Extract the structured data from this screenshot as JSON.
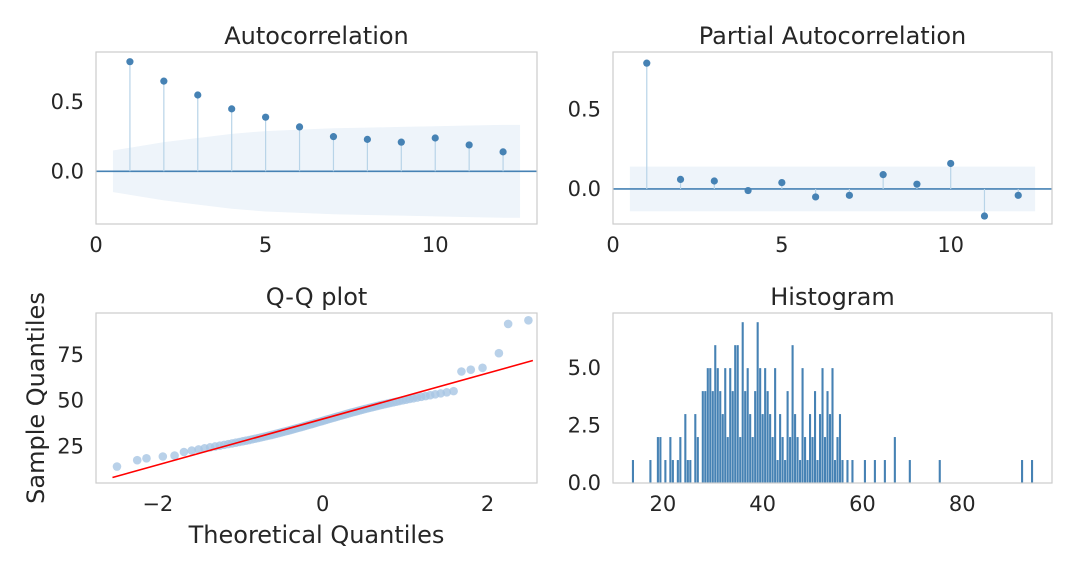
{
  "colors": {
    "marker": "#4682b4",
    "stem": "#b8d4e8",
    "band": "#eef4fa",
    "hist_bar": "#4682b4",
    "qq_points": "#a8c6e3",
    "qq_line": "#ff0000",
    "frame": "#cccccc"
  },
  "chart_data": [
    {
      "type": "scatter",
      "title": "Autocorrelation",
      "xlabel": "",
      "ylabel": "",
      "xlim": [
        0,
        13
      ],
      "ylim": [
        -0.38,
        0.86
      ],
      "xticks": [
        0,
        5,
        10
      ],
      "yticks": [
        0.0,
        0.5
      ],
      "ytick_labels": [
        "0.0",
        "0.5"
      ],
      "grid": false,
      "x": [
        1,
        2,
        3,
        4,
        5,
        6,
        7,
        8,
        9,
        10,
        11,
        12
      ],
      "values": [
        0.79,
        0.65,
        0.55,
        0.45,
        0.39,
        0.32,
        0.25,
        0.23,
        0.21,
        0.24,
        0.19,
        0.14
      ],
      "conf_band": {
        "x": [
          0.5,
          1,
          2,
          3,
          4,
          5,
          6,
          7,
          8,
          9,
          10,
          11,
          12,
          12.5
        ],
        "upper": [
          0.15,
          0.17,
          0.21,
          0.24,
          0.27,
          0.29,
          0.3,
          0.31,
          0.315,
          0.32,
          0.325,
          0.33,
          0.335,
          0.335
        ],
        "lower": [
          -0.15,
          -0.17,
          -0.21,
          -0.24,
          -0.27,
          -0.29,
          -0.3,
          -0.31,
          -0.315,
          -0.32,
          -0.325,
          -0.33,
          -0.335,
          -0.335
        ]
      }
    },
    {
      "type": "scatter",
      "title": "Partial Autocorrelation",
      "xlabel": "",
      "ylabel": "",
      "xlim": [
        0,
        13
      ],
      "ylim": [
        -0.22,
        0.86
      ],
      "xticks": [
        0,
        5,
        10
      ],
      "yticks": [
        0.0,
        0.5
      ],
      "ytick_labels": [
        "0.0",
        "0.5"
      ],
      "grid": false,
      "x": [
        1,
        2,
        3,
        4,
        5,
        6,
        7,
        8,
        9,
        10,
        11,
        12
      ],
      "values": [
        0.79,
        0.06,
        0.05,
        -0.01,
        0.04,
        -0.05,
        -0.04,
        0.09,
        0.03,
        0.16,
        -0.17,
        -0.04
      ],
      "conf_band": {
        "x": [
          0.5,
          12.5
        ],
        "upper": [
          0.14,
          0.14
        ],
        "lower": [
          -0.14,
          -0.14
        ]
      }
    },
    {
      "type": "scatter",
      "title": "Q-Q plot",
      "xlabel": "Theoretical Quantiles",
      "ylabel": "Sample Quantiles",
      "xlim": [
        -2.75,
        2.6
      ],
      "ylim": [
        5,
        98
      ],
      "xticks": [
        -2,
        0,
        2
      ],
      "xtick_labels": [
        "−2",
        "0",
        "2"
      ],
      "yticks": [
        25,
        50,
        75
      ],
      "grid": false,
      "n_points": 100,
      "fit_line": {
        "x": [
          -2.55,
          2.55
        ],
        "y": [
          8,
          72
        ]
      },
      "highlight_points": [
        {
          "x": -2.55,
          "y": 14
        },
        {
          "x": -2.25,
          "y": 17.5
        },
        {
          "x": -2.06,
          "y": 18.5
        },
        {
          "x": -1.93,
          "y": 19.5
        },
        {
          "x": -1.8,
          "y": 20
        },
        {
          "x": 1.7,
          "y": 66
        },
        {
          "x": 1.8,
          "y": 67
        },
        {
          "x": 1.9,
          "y": 68
        },
        {
          "x": 2.06,
          "y": 76
        },
        {
          "x": 2.25,
          "y": 92
        },
        {
          "x": 2.55,
          "y": 94
        }
      ],
      "body_fit": {
        "slope": 10.5,
        "intercept": 39.0,
        "amp": 1.2
      }
    },
    {
      "type": "bar",
      "title": "Histogram",
      "xlabel": "",
      "ylabel": "",
      "xlim": [
        10,
        98
      ],
      "ylim": [
        0,
        7.4
      ],
      "xticks": [
        20,
        40,
        60,
        80
      ],
      "yticks": [
        0,
        2.5,
        5
      ],
      "ytick_labels": [
        "0.0",
        "2.5",
        "5.0"
      ],
      "grid": false,
      "bar_width": 0.42,
      "x": [
        14,
        17.5,
        19,
        19.5,
        20.5,
        21.5,
        22,
        23,
        23.5,
        24.5,
        25,
        25.5,
        26.5,
        27,
        28,
        28.5,
        29,
        29.5,
        30,
        30.5,
        31,
        31.5,
        32,
        32.5,
        33,
        33.5,
        34,
        34.5,
        35,
        35.5,
        36,
        36.5,
        37,
        37.5,
        38,
        38.5,
        39,
        39.5,
        40,
        40.5,
        41,
        41.5,
        42,
        42.5,
        43,
        43.5,
        44,
        44.5,
        45,
        45.5,
        46,
        46.5,
        47,
        47.5,
        48,
        48.5,
        49,
        49.5,
        50,
        50.5,
        51,
        51.5,
        52,
        52.5,
        53,
        53.5,
        54,
        54.5,
        55,
        55.5,
        56,
        57,
        58,
        60.5,
        62.5,
        64.5,
        66.5,
        69.5,
        75.5,
        92,
        94
      ],
      "values": [
        1,
        1,
        2,
        2,
        1,
        2,
        1,
        1,
        2,
        3,
        1,
        1,
        3,
        2,
        4,
        4,
        5,
        5,
        4,
        6,
        5,
        4,
        3,
        5,
        2,
        5,
        4,
        6,
        6,
        2,
        7,
        4,
        5,
        3,
        2,
        4,
        7,
        5,
        3,
        5,
        4,
        3,
        2,
        5,
        1,
        3,
        2,
        1,
        4,
        2,
        6,
        3,
        2,
        1,
        5,
        2,
        1,
        3,
        2,
        4,
        1,
        3,
        5,
        2,
        4,
        3,
        5,
        1,
        2,
        3,
        1,
        1,
        1,
        1,
        1,
        1,
        2,
        1,
        1,
        1,
        1
      ]
    }
  ]
}
